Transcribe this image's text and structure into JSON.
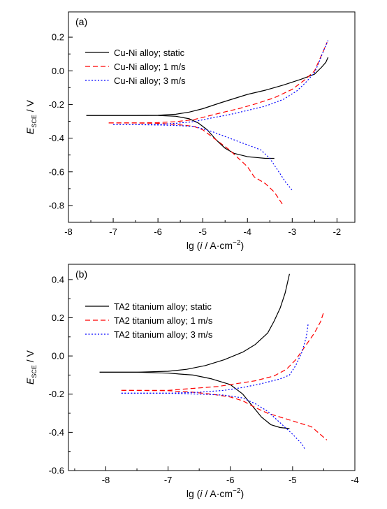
{
  "chart_data": [
    {
      "type": "line",
      "panel_label": "(a)",
      "ylabel_main": "E",
      "ylabel_sub": "SCE",
      "ylabel_unit": " / V",
      "xlabel_main": "lg (",
      "xlabel_var": "i",
      "xlabel_rest": " / A·cm",
      "xlabel_sup": "−2",
      "xlabel_end": ")",
      "xlim": [
        -8,
        -1.6
      ],
      "ylim": [
        -0.9,
        0.35
      ],
      "xticks": [
        -8,
        -7,
        -6,
        -5,
        -4,
        -3,
        -2
      ],
      "xtick_labels": [
        "-8",
        "-7",
        "-6",
        "-5",
        "-4",
        "-3",
        "-2"
      ],
      "yticks": [
        -0.8,
        -0.6,
        -0.4,
        -0.2,
        0.0,
        0.2
      ],
      "ytick_labels": [
        "-0.8",
        "-0.6",
        "-0.4",
        "-0.2",
        "0.0",
        "0.2"
      ],
      "legend": "upper-left",
      "series": [
        {
          "name": "Cu-Ni alloy; static",
          "color": "#000000",
          "dash": "solid",
          "anodic": [
            [
              -7.6,
              -0.265
            ],
            [
              -6.5,
              -0.265
            ],
            [
              -6.0,
              -0.264
            ],
            [
              -5.6,
              -0.258
            ],
            [
              -5.3,
              -0.245
            ],
            [
              -5.0,
              -0.225
            ],
            [
              -4.6,
              -0.19
            ],
            [
              -4.3,
              -0.165
            ],
            [
              -4.0,
              -0.14
            ],
            [
              -3.6,
              -0.115
            ],
            [
              -3.2,
              -0.085
            ],
            [
              -2.8,
              -0.05
            ],
            [
              -2.5,
              -0.02
            ],
            [
              -2.35,
              0.02
            ],
            [
              -2.25,
              0.05
            ],
            [
              -2.2,
              0.08
            ]
          ],
          "cathodic": [
            [
              -7.6,
              -0.265
            ],
            [
              -6.5,
              -0.265
            ],
            [
              -6.0,
              -0.265
            ],
            [
              -5.6,
              -0.27
            ],
            [
              -5.3,
              -0.285
            ],
            [
              -5.1,
              -0.31
            ],
            [
              -4.9,
              -0.35
            ],
            [
              -4.7,
              -0.41
            ],
            [
              -4.5,
              -0.46
            ],
            [
              -4.3,
              -0.49
            ],
            [
              -4.0,
              -0.51
            ],
            [
              -3.8,
              -0.515
            ],
            [
              -3.6,
              -0.52
            ],
            [
              -3.4,
              -0.52
            ]
          ]
        },
        {
          "name": "Cu-Ni alloy; 1 m/s",
          "color": "#ff0000",
          "dash": "dash",
          "anodic": [
            [
              -7.1,
              -0.31
            ],
            [
              -6.5,
              -0.31
            ],
            [
              -6.0,
              -0.308
            ],
            [
              -5.6,
              -0.302
            ],
            [
              -5.2,
              -0.29
            ],
            [
              -4.9,
              -0.27
            ],
            [
              -4.6,
              -0.25
            ],
            [
              -4.2,
              -0.225
            ],
            [
              -3.8,
              -0.195
            ],
            [
              -3.4,
              -0.16
            ],
            [
              -3.0,
              -0.11
            ],
            [
              -2.7,
              -0.05
            ],
            [
              -2.5,
              0.0
            ],
            [
              -2.4,
              0.06
            ],
            [
              -2.3,
              0.12
            ],
            [
              -2.22,
              0.17
            ]
          ],
          "cathodic": [
            [
              -7.1,
              -0.31
            ],
            [
              -6.5,
              -0.31
            ],
            [
              -6.0,
              -0.312
            ],
            [
              -5.6,
              -0.318
            ],
            [
              -5.2,
              -0.33
            ],
            [
              -5.0,
              -0.35
            ],
            [
              -4.8,
              -0.39
            ],
            [
              -4.6,
              -0.43
            ],
            [
              -4.4,
              -0.47
            ],
            [
              -4.2,
              -0.52
            ],
            [
              -4.0,
              -0.57
            ],
            [
              -3.85,
              -0.63
            ],
            [
              -3.6,
              -0.67
            ],
            [
              -3.4,
              -0.72
            ],
            [
              -3.2,
              -0.8
            ]
          ]
        },
        {
          "name": "Cu-Ni alloy; 3 m/s",
          "color": "#0000ff",
          "dash": "dot",
          "anodic": [
            [
              -7.0,
              -0.32
            ],
            [
              -6.5,
              -0.32
            ],
            [
              -6.0,
              -0.318
            ],
            [
              -5.6,
              -0.312
            ],
            [
              -5.2,
              -0.302
            ],
            [
              -4.8,
              -0.28
            ],
            [
              -4.4,
              -0.26
            ],
            [
              -4.0,
              -0.235
            ],
            [
              -3.6,
              -0.21
            ],
            [
              -3.2,
              -0.17
            ],
            [
              -2.9,
              -0.12
            ],
            [
              -2.7,
              -0.07
            ],
            [
              -2.5,
              -0.01
            ],
            [
              -2.4,
              0.05
            ],
            [
              -2.3,
              0.12
            ],
            [
              -2.2,
              0.18
            ]
          ],
          "cathodic": [
            [
              -7.0,
              -0.32
            ],
            [
              -6.5,
              -0.32
            ],
            [
              -6.0,
              -0.322
            ],
            [
              -5.6,
              -0.325
            ],
            [
              -5.2,
              -0.33
            ],
            [
              -4.8,
              -0.36
            ],
            [
              -4.5,
              -0.39
            ],
            [
              -4.2,
              -0.42
            ],
            [
              -4.0,
              -0.44
            ],
            [
              -3.7,
              -0.47
            ],
            [
              -3.5,
              -0.52
            ],
            [
              -3.4,
              -0.56
            ],
            [
              -3.3,
              -0.6
            ],
            [
              -3.15,
              -0.66
            ],
            [
              -3.0,
              -0.71
            ]
          ]
        }
      ]
    },
    {
      "type": "line",
      "panel_label": "(b)",
      "ylabel_main": "E",
      "ylabel_sub": "SCE",
      "ylabel_unit": " / V",
      "xlabel_main": "lg (",
      "xlabel_var": "i",
      "xlabel_rest": " / A·cm",
      "xlabel_sup": "−2",
      "xlabel_end": ")",
      "xlim": [
        -8.6,
        -4
      ],
      "ylim": [
        -0.6,
        0.48
      ],
      "xticks": [
        -8,
        -7,
        -6,
        -5,
        -4
      ],
      "xtick_labels": [
        "-8",
        "-7",
        "-6",
        "-5",
        "-4"
      ],
      "yticks": [
        -0.6,
        -0.4,
        -0.2,
        0.0,
        0.2,
        0.4
      ],
      "ytick_labels": [
        "-0.6",
        "-0.4",
        "-0.2",
        "0.0",
        "0.2",
        "0.4"
      ],
      "legend": "upper-left",
      "series": [
        {
          "name": "TA2 titanium alloy; static",
          "color": "#000000",
          "dash": "solid",
          "anodic": [
            [
              -8.1,
              -0.085
            ],
            [
              -7.5,
              -0.085
            ],
            [
              -7.0,
              -0.08
            ],
            [
              -6.7,
              -0.07
            ],
            [
              -6.4,
              -0.05
            ],
            [
              -6.1,
              -0.02
            ],
            [
              -5.8,
              0.02
            ],
            [
              -5.6,
              0.06
            ],
            [
              -5.4,
              0.12
            ],
            [
              -5.3,
              0.18
            ],
            [
              -5.2,
              0.25
            ],
            [
              -5.12,
              0.33
            ],
            [
              -5.05,
              0.43
            ]
          ],
          "cathodic": [
            [
              -8.1,
              -0.085
            ],
            [
              -7.5,
              -0.085
            ],
            [
              -7.0,
              -0.09
            ],
            [
              -6.6,
              -0.1
            ],
            [
              -6.3,
              -0.12
            ],
            [
              -6.0,
              -0.15
            ],
            [
              -5.8,
              -0.2
            ],
            [
              -5.65,
              -0.26
            ],
            [
              -5.5,
              -0.32
            ],
            [
              -5.35,
              -0.36
            ],
            [
              -5.2,
              -0.375
            ],
            [
              -5.05,
              -0.38
            ]
          ]
        },
        {
          "name": "TA2 titanium alloy; 1 m/s",
          "color": "#ff0000",
          "dash": "dash",
          "anodic": [
            [
              -7.75,
              -0.18
            ],
            [
              -7.0,
              -0.18
            ],
            [
              -6.6,
              -0.17
            ],
            [
              -6.2,
              -0.16
            ],
            [
              -5.9,
              -0.145
            ],
            [
              -5.6,
              -0.13
            ],
            [
              -5.3,
              -0.105
            ],
            [
              -5.1,
              -0.07
            ],
            [
              -4.95,
              -0.02
            ],
            [
              -4.8,
              0.05
            ],
            [
              -4.65,
              0.12
            ],
            [
              -4.55,
              0.18
            ],
            [
              -4.5,
              0.23
            ]
          ],
          "cathodic": [
            [
              -7.75,
              -0.18
            ],
            [
              -7.0,
              -0.182
            ],
            [
              -6.6,
              -0.19
            ],
            [
              -6.3,
              -0.2
            ],
            [
              -6.0,
              -0.215
            ],
            [
              -5.8,
              -0.235
            ],
            [
              -5.6,
              -0.27
            ],
            [
              -5.4,
              -0.3
            ],
            [
              -5.2,
              -0.32
            ],
            [
              -5.0,
              -0.34
            ],
            [
              -4.7,
              -0.37
            ],
            [
              -4.45,
              -0.44
            ]
          ]
        },
        {
          "name": "TA2 titanium alloy; 3 m/s",
          "color": "#0000ff",
          "dash": "dot",
          "anodic": [
            [
              -7.75,
              -0.195
            ],
            [
              -7.0,
              -0.195
            ],
            [
              -6.5,
              -0.19
            ],
            [
              -6.1,
              -0.18
            ],
            [
              -5.8,
              -0.165
            ],
            [
              -5.5,
              -0.145
            ],
            [
              -5.2,
              -0.12
            ],
            [
              -5.05,
              -0.1
            ],
            [
              -4.95,
              -0.05
            ],
            [
              -4.85,
              0.02
            ],
            [
              -4.78,
              0.1
            ],
            [
              -4.75,
              0.17
            ]
          ],
          "cathodic": [
            [
              -7.75,
              -0.195
            ],
            [
              -7.0,
              -0.195
            ],
            [
              -6.5,
              -0.2
            ],
            [
              -6.1,
              -0.205
            ],
            [
              -5.8,
              -0.22
            ],
            [
              -5.6,
              -0.25
            ],
            [
              -5.4,
              -0.29
            ],
            [
              -5.2,
              -0.35
            ],
            [
              -5.0,
              -0.41
            ],
            [
              -4.85,
              -0.46
            ],
            [
              -4.8,
              -0.49
            ]
          ]
        }
      ]
    }
  ]
}
